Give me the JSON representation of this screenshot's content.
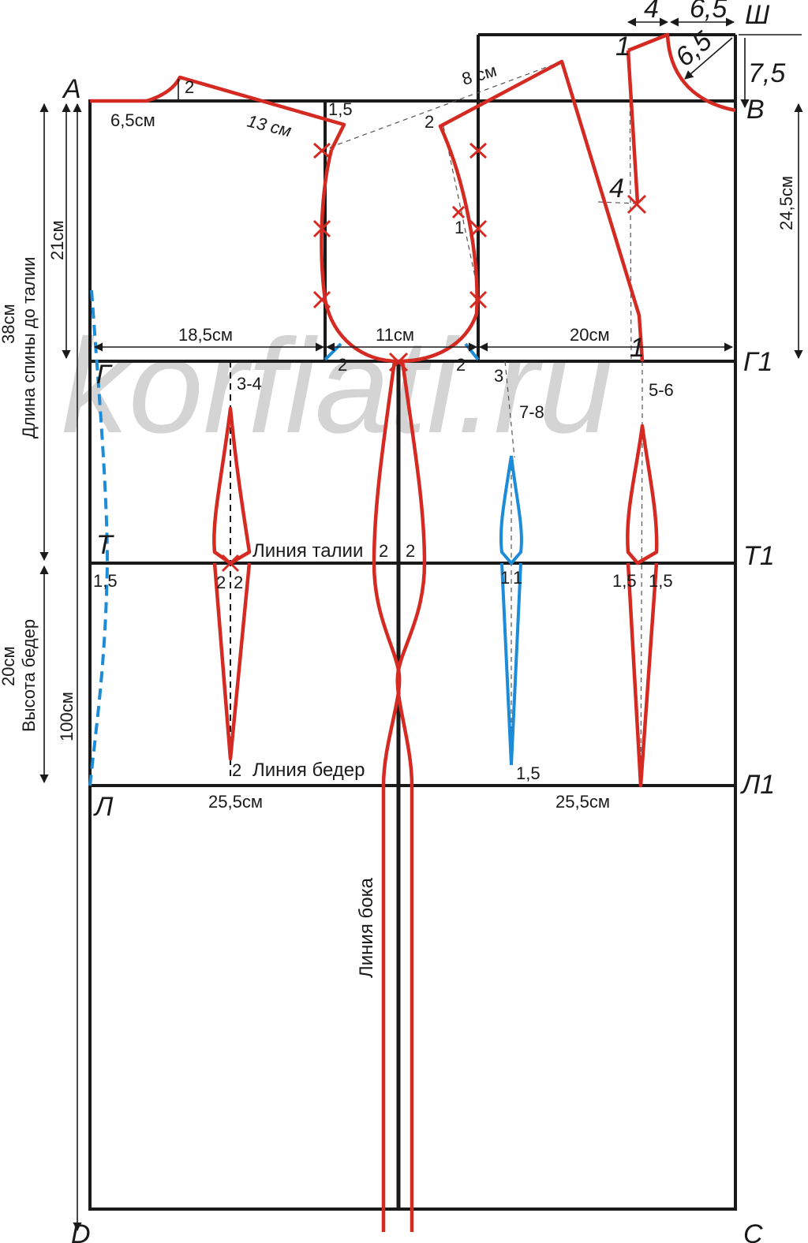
{
  "colors": {
    "frame": "#1a1a1a",
    "pattern": "#d42a22",
    "blue": "#1c8bd8",
    "watermark": "#9a9a9a"
  },
  "watermark": "korfiati.ru",
  "points": {
    "A": "А",
    "V": "В",
    "Sh": "Ш",
    "G": "Г",
    "G1": "Г1",
    "T": "Т",
    "T1": "Т1",
    "L": "Л",
    "L1": "Л1",
    "D": "D",
    "C": "C"
  },
  "lines": {
    "waist": "Линия талии",
    "hips": "Линия  бедер",
    "side": "Линия бока"
  },
  "vertical_dims": {
    "back_length": "38см",
    "back_length_caption": "Длина спины до талии",
    "armhole_depth": "21см",
    "hip_height": "20см",
    "hip_height_caption": "Высота бедер",
    "total_length": "100см",
    "front_height": "24,5см",
    "front_neck_depth": "7,5"
  },
  "horizontal_dims": {
    "back_neck": "6,5см",
    "shoulder_back": "13 см",
    "back_width": "18,5см",
    "armhole_width": "11см",
    "front_width": "20см",
    "hip_back": "25,5см",
    "hip_front": "25,5см",
    "shoulder_gap": "8 см",
    "top_4": "4",
    "top_6_5": "6,5",
    "neck_6_5": "6,5"
  },
  "marks": {
    "back_neck_rise": "2",
    "shoulder_drop": "1,5",
    "front_shoulder_2": "2",
    "armhole_1": "1",
    "front_dart_4": "4",
    "front_1_top": "1",
    "front_1_bottom": "1",
    "armhole_back_2": "2",
    "armhole_front_2": "2",
    "point_3": "3",
    "dart_back_label": "3-4",
    "dart_7_8": "7-8",
    "dart_5_6": "5-6",
    "waist_back_15": "1,5",
    "dart_back_left": "2",
    "dart_back_right": "2",
    "side_left": "2",
    "side_right": "2",
    "dart_blue_left": "1",
    "dart_blue_right": "1",
    "dart_front_left": "1,5",
    "dart_front_right": "1,5",
    "hip_dart_2": "2",
    "hip_blue_15": "1,5"
  }
}
